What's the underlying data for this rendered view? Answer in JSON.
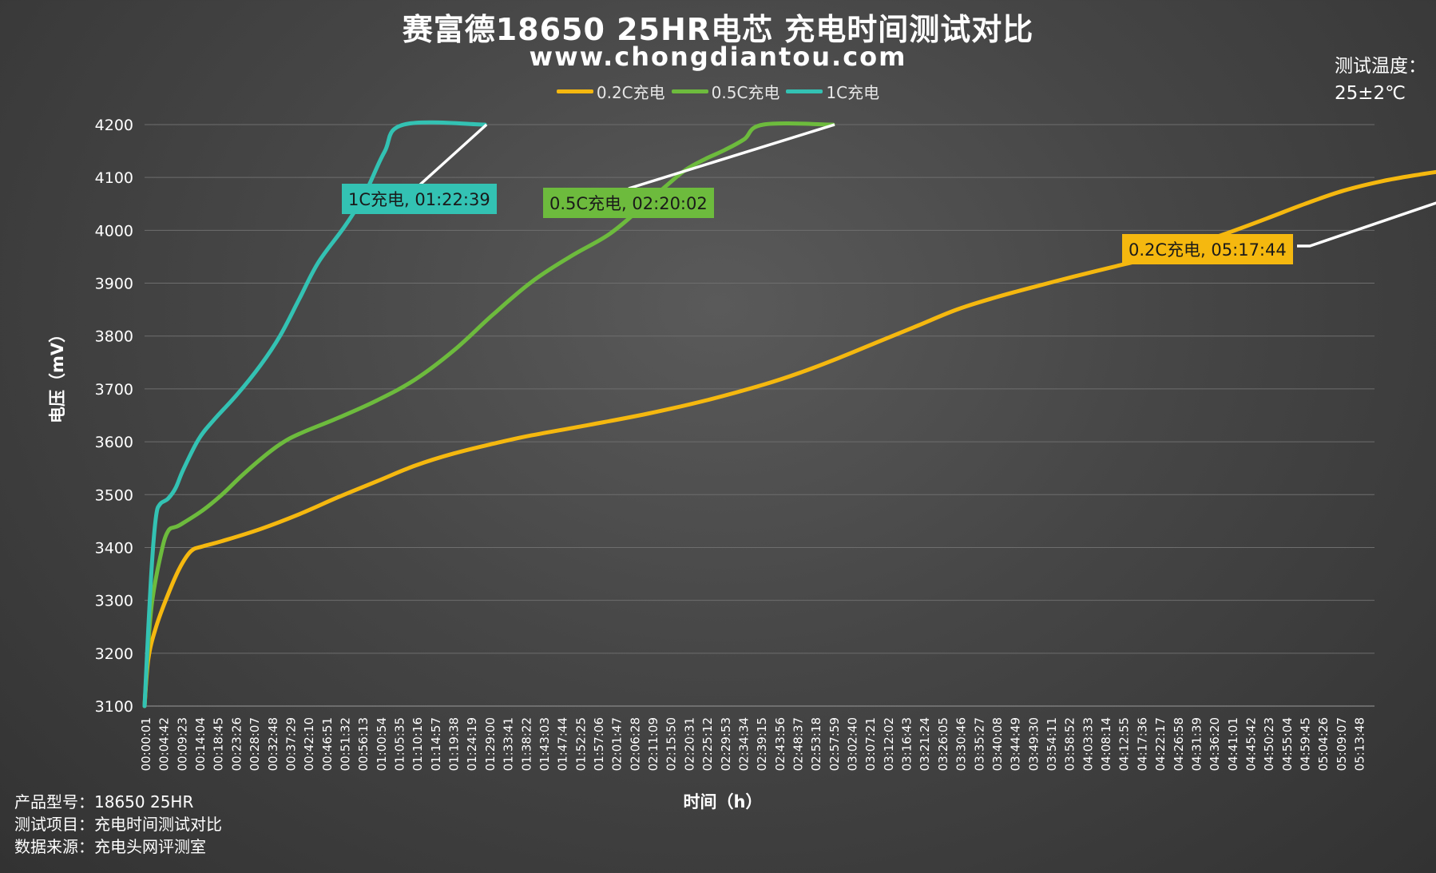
{
  "title": "赛富德18650 25HR电芯 充电时间测试对比",
  "subtitle": "www.chongdiantou.com",
  "temperature": {
    "label": "测试温度：",
    "value": "25±2℃"
  },
  "footer": {
    "line1": "产品型号：18650 25HR",
    "line2": "测试项目：充电时间测试对比",
    "line3": "数据来源：充电头网评测室"
  },
  "chart_data": {
    "type": "line",
    "ylabel": "电压（mV）",
    "xlabel": "时间（h）",
    "ylim": [
      3100,
      4200
    ],
    "yticks": [
      3100,
      3200,
      3300,
      3400,
      3500,
      3600,
      3700,
      3800,
      3900,
      4000,
      4100,
      4200
    ],
    "grid": true,
    "legend_position": "top",
    "x_ticks": [
      "00:00:01",
      "00:04:42",
      "00:09:23",
      "00:14:04",
      "00:18:45",
      "00:23:26",
      "00:28:07",
      "00:32:48",
      "00:37:29",
      "00:42:10",
      "00:46:51",
      "00:51:32",
      "00:56:13",
      "01:00:54",
      "01:05:35",
      "01:10:16",
      "01:14:57",
      "01:19:38",
      "01:24:19",
      "01:29:00",
      "01:33:41",
      "01:38:22",
      "01:43:03",
      "01:47:44",
      "01:52:25",
      "01:57:06",
      "02:01:47",
      "02:06:28",
      "02:11:09",
      "02:15:50",
      "02:20:31",
      "02:25:12",
      "02:29:53",
      "02:34:34",
      "02:39:15",
      "02:43:56",
      "02:48:37",
      "02:53:18",
      "02:57:59",
      "03:02:40",
      "03:07:21",
      "03:12:02",
      "03:16:43",
      "03:21:24",
      "03:26:05",
      "03:30:46",
      "03:35:27",
      "03:40:08",
      "03:44:49",
      "03:49:30",
      "03:54:11",
      "03:58:52",
      "04:03:33",
      "04:08:14",
      "04:12:55",
      "04:17:36",
      "04:22:17",
      "04:26:58",
      "04:31:39",
      "04:36:20",
      "04:41:01",
      "04:45:42",
      "04:50:23",
      "04:55:04",
      "04:59:45",
      "05:04:26",
      "05:09:07",
      "05:13:48"
    ],
    "series": [
      {
        "name": "0.2C充电",
        "color": "#f5b80f",
        "points": [
          [
            0,
            3100
          ],
          [
            1,
            3190
          ],
          [
            3,
            3250
          ],
          [
            6,
            3310
          ],
          [
            9,
            3360
          ],
          [
            12,
            3393
          ],
          [
            15,
            3402
          ],
          [
            20,
            3412
          ],
          [
            30,
            3435
          ],
          [
            40,
            3463
          ],
          [
            50,
            3495
          ],
          [
            60,
            3525
          ],
          [
            70,
            3555
          ],
          [
            80,
            3578
          ],
          [
            90,
            3596
          ],
          [
            100,
            3612
          ],
          [
            115,
            3632
          ],
          [
            130,
            3653
          ],
          [
            145,
            3678
          ],
          [
            160,
            3708
          ],
          [
            170,
            3732
          ],
          [
            180,
            3760
          ],
          [
            190,
            3790
          ],
          [
            200,
            3820
          ],
          [
            210,
            3850
          ],
          [
            220,
            3873
          ],
          [
            230,
            3893
          ],
          [
            240,
            3912
          ],
          [
            250,
            3930
          ],
          [
            260,
            3948
          ],
          [
            270,
            3970
          ],
          [
            280,
            3995
          ],
          [
            290,
            4022
          ],
          [
            300,
            4050
          ],
          [
            310,
            4075
          ],
          [
            320,
            4093
          ],
          [
            330,
            4106
          ],
          [
            340,
            4117
          ],
          [
            350,
            4130
          ],
          [
            360,
            4147
          ],
          [
            370,
            4172
          ],
          [
            378,
            4200
          ],
          [
            393,
            4200
          ]
        ],
        "callout": "0.2C充电, 05:17:44"
      },
      {
        "name": "0.5C充电",
        "color": "#6dbb3d",
        "points": [
          [
            0,
            3100
          ],
          [
            1,
            3220
          ],
          [
            2,
            3300
          ],
          [
            4,
            3380
          ],
          [
            6,
            3430
          ],
          [
            9,
            3442
          ],
          [
            15,
            3470
          ],
          [
            20,
            3500
          ],
          [
            25,
            3535
          ],
          [
            30,
            3567
          ],
          [
            35,
            3595
          ],
          [
            40,
            3615
          ],
          [
            50,
            3645
          ],
          [
            60,
            3678
          ],
          [
            70,
            3718
          ],
          [
            80,
            3773
          ],
          [
            90,
            3840
          ],
          [
            100,
            3902
          ],
          [
            110,
            3950
          ],
          [
            120,
            3992
          ],
          [
            128,
            4040
          ],
          [
            135,
            4085
          ],
          [
            140,
            4115
          ],
          [
            145,
            4135
          ],
          [
            150,
            4152
          ],
          [
            155,
            4172
          ],
          [
            160,
            4200
          ],
          [
            178,
            4200
          ]
        ],
        "callout": "0.5C充电, 02:20:02"
      },
      {
        "name": "1C充电",
        "color": "#33c2b3",
        "points": [
          [
            0,
            3100
          ],
          [
            1,
            3250
          ],
          [
            2,
            3380
          ],
          [
            3,
            3460
          ],
          [
            4,
            3482
          ],
          [
            6,
            3492
          ],
          [
            8,
            3512
          ],
          [
            10,
            3547
          ],
          [
            14,
            3605
          ],
          [
            18,
            3642
          ],
          [
            24,
            3690
          ],
          [
            30,
            3745
          ],
          [
            35,
            3800
          ],
          [
            40,
            3870
          ],
          [
            45,
            3940
          ],
          [
            52,
            4010
          ],
          [
            57,
            4070
          ],
          [
            62,
            4148
          ],
          [
            67,
            4200
          ],
          [
            88,
            4200
          ]
        ],
        "callout": "1C充电, 01:22:39"
      }
    ]
  }
}
